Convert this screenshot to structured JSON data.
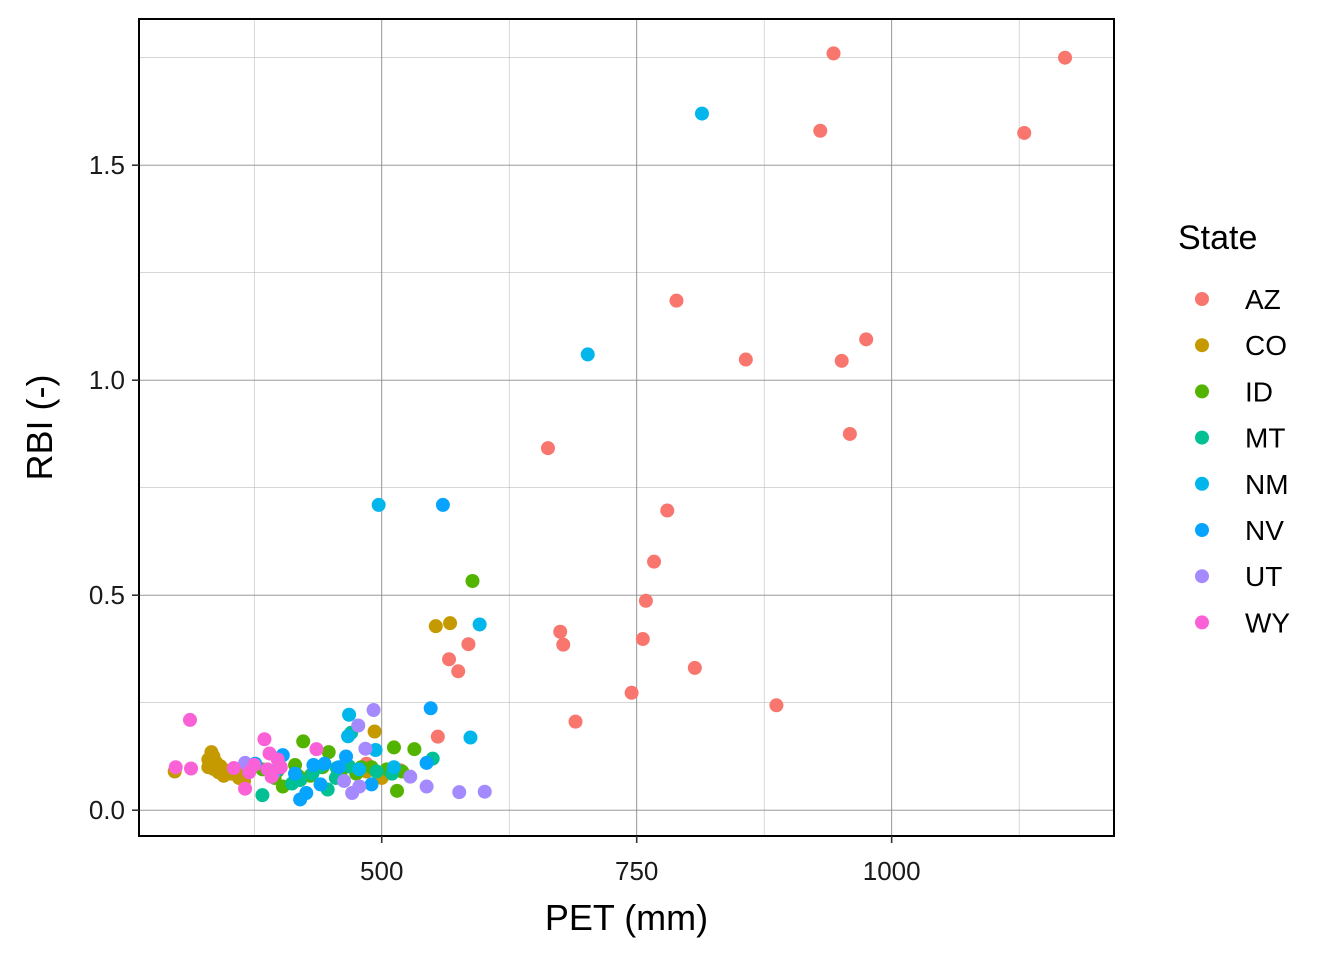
{
  "chart_data": {
    "type": "scatter",
    "xlabel": "PET (mm)",
    "ylabel": "RBI (-)",
    "xlim": [
      262,
      1218
    ],
    "ylim": [
      -0.06,
      1.84
    ],
    "x_ticks": [
      500,
      750,
      1000
    ],
    "x_tick_labels": [
      "500",
      "750",
      "1000"
    ],
    "x_minor": [
      375,
      625,
      875,
      1125
    ],
    "y_ticks": [
      0.0,
      0.5,
      1.0,
      1.5
    ],
    "y_tick_labels": [
      "0.0",
      "0.5",
      "1.0",
      "1.5"
    ],
    "y_minor": [
      0.25,
      0.75,
      1.25,
      1.75
    ],
    "grid": true,
    "legend": {
      "title": "State",
      "position": "right"
    },
    "series": [
      {
        "name": "AZ",
        "color": "#F8766D",
        "points": [
          [
            943,
            1.76
          ],
          [
            1170,
            1.75
          ],
          [
            930,
            1.58
          ],
          [
            1130,
            1.575
          ],
          [
            789,
            1.185
          ],
          [
            975,
            1.095
          ],
          [
            857,
            1.048
          ],
          [
            951,
            1.045
          ],
          [
            959,
            0.875
          ],
          [
            663,
            0.842
          ],
          [
            780,
            0.697
          ],
          [
            767,
            0.578
          ],
          [
            759,
            0.487
          ],
          [
            675,
            0.415
          ],
          [
            756,
            0.398
          ],
          [
            678,
            0.385
          ],
          [
            585,
            0.386
          ],
          [
            566,
            0.351
          ],
          [
            807,
            0.331
          ],
          [
            575,
            0.323
          ],
          [
            745,
            0.273
          ],
          [
            887,
            0.244
          ],
          [
            690,
            0.206
          ],
          [
            555,
            0.171
          ],
          [
            518,
            0.093
          ],
          [
            485,
            0.108
          ]
        ]
      },
      {
        "name": "CO",
        "color": "#C49A00",
        "points": [
          [
            553,
            0.428
          ],
          [
            567,
            0.435
          ],
          [
            493,
            0.183
          ],
          [
            333,
            0.135
          ],
          [
            335,
            0.125
          ],
          [
            330,
            0.118
          ],
          [
            338,
            0.11
          ],
          [
            342,
            0.102
          ],
          [
            335,
            0.096
          ],
          [
            347,
            0.092
          ],
          [
            340,
            0.088
          ],
          [
            352,
            0.085
          ],
          [
            345,
            0.08
          ],
          [
            360,
            0.075
          ],
          [
            297,
            0.09
          ],
          [
            365,
            0.068
          ],
          [
            330,
            0.1
          ],
          [
            358,
            0.095
          ],
          [
            500,
            0.075
          ],
          [
            485,
            0.09
          ]
        ]
      },
      {
        "name": "ID",
        "color": "#53B400",
        "points": [
          [
            589,
            0.533
          ],
          [
            423,
            0.16
          ],
          [
            512,
            0.146
          ],
          [
            532,
            0.142
          ],
          [
            448,
            0.135
          ],
          [
            383,
            0.095
          ],
          [
            398,
            0.092
          ],
          [
            415,
            0.105
          ],
          [
            430,
            0.08
          ],
          [
            442,
            0.1
          ],
          [
            460,
            0.09
          ],
          [
            475,
            0.085
          ],
          [
            490,
            0.1
          ],
          [
            505,
            0.095
          ],
          [
            520,
            0.09
          ],
          [
            403,
            0.055
          ],
          [
            515,
            0.045
          ],
          [
            418,
            0.08
          ],
          [
            395,
            0.075
          ],
          [
            480,
            0.1
          ]
        ]
      },
      {
        "name": "MT",
        "color": "#00C094",
        "points": [
          [
            383,
            0.035
          ],
          [
            550,
            0.12
          ],
          [
            470,
            0.18
          ],
          [
            447,
            0.048
          ],
          [
            412,
            0.062
          ],
          [
            432,
            0.085
          ],
          [
            456,
            0.098
          ],
          [
            468,
            0.102
          ],
          [
            495,
            0.09
          ],
          [
            510,
            0.085
          ],
          [
            455,
            0.075
          ],
          [
            420,
            0.07
          ],
          [
            395,
            0.09
          ],
          [
            438,
            0.1
          ]
        ]
      },
      {
        "name": "NM",
        "color": "#00B6EB",
        "points": [
          [
            814,
            1.62
          ],
          [
            702,
            1.06
          ],
          [
            497,
            0.71
          ],
          [
            596,
            0.432
          ],
          [
            468,
            0.222
          ],
          [
            587,
            0.169
          ],
          [
            467,
            0.172
          ],
          [
            494,
            0.14
          ],
          [
            512,
            0.1
          ],
          [
            478,
            0.095
          ]
        ]
      },
      {
        "name": "NV",
        "color": "#06A4FF",
        "points": [
          [
            560,
            0.71
          ],
          [
            548,
            0.237
          ],
          [
            544,
            0.11
          ],
          [
            420,
            0.025
          ],
          [
            426,
            0.04
          ],
          [
            490,
            0.06
          ],
          [
            444,
            0.108
          ],
          [
            403,
            0.128
          ],
          [
            433,
            0.105
          ],
          [
            465,
            0.125
          ],
          [
            440,
            0.06
          ],
          [
            458,
            0.1
          ],
          [
            376,
            0.108
          ],
          [
            398,
            0.095
          ],
          [
            415,
            0.085
          ]
        ]
      },
      {
        "name": "UT",
        "color": "#A58AFF",
        "points": [
          [
            492,
            0.233
          ],
          [
            477,
            0.197
          ],
          [
            484,
            0.143
          ],
          [
            576,
            0.042
          ],
          [
            601,
            0.043
          ],
          [
            544,
            0.055
          ],
          [
            528,
            0.078
          ],
          [
            471,
            0.04
          ],
          [
            478,
            0.055
          ],
          [
            366,
            0.11
          ],
          [
            393,
            0.082
          ],
          [
            463,
            0.068
          ]
        ]
      },
      {
        "name": "WY",
        "color": "#FB61D7",
        "points": [
          [
            312,
            0.21
          ],
          [
            385,
            0.165
          ],
          [
            436,
            0.142
          ],
          [
            390,
            0.132
          ],
          [
            398,
            0.118
          ],
          [
            401,
            0.1
          ],
          [
            370,
            0.088
          ],
          [
            298,
            0.1
          ],
          [
            313,
            0.097
          ],
          [
            366,
            0.05
          ],
          [
            388,
            0.095
          ],
          [
            355,
            0.098
          ],
          [
            375,
            0.105
          ],
          [
            392,
            0.078
          ]
        ]
      }
    ]
  }
}
